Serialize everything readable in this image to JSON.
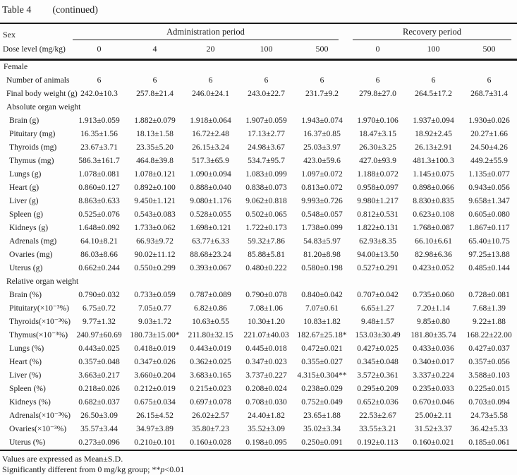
{
  "colors": {
    "ink": "#1a1a1a",
    "background": "#fdfdfd"
  },
  "title": {
    "table_label": "Table 4",
    "continued": "(continued)"
  },
  "header": {
    "sex_label": "Sex",
    "dose_label": "Dose level (mg/kg)",
    "admin_period": "Administration period",
    "recovery_period": "Recovery period",
    "doses": [
      "0",
      "4",
      "20",
      "100",
      "500",
      "0",
      "100",
      "500"
    ]
  },
  "table": {
    "rows": [
      {
        "type": "section",
        "indent": 0,
        "label": "Female"
      },
      {
        "type": "data",
        "indent": 1,
        "label": "Number of animals",
        "values": [
          "6",
          "6",
          "6",
          "6",
          "6",
          "6",
          "6",
          "6"
        ]
      },
      {
        "type": "data",
        "indent": 1,
        "label": "Final body weight (g)",
        "values": [
          "242.0±10.3",
          "257.8±21.4",
          "246.0±24.1",
          "243.0±22.7",
          "231.7±9.2",
          "279.8±27.0",
          "264.5±17.2",
          "268.7±31.4"
        ]
      },
      {
        "type": "section",
        "indent": 1,
        "label": "Absolute organ weight"
      },
      {
        "type": "data",
        "indent": 2,
        "label": "Brain (g)",
        "values": [
          "1.913±0.059",
          "1.882±0.079",
          "1.918±0.064",
          "1.907±0.059",
          "1.943±0.074",
          "1.970±0.106",
          "1.937±0.094",
          "1.930±0.026"
        ]
      },
      {
        "type": "data",
        "indent": 2,
        "label": "Pituitary (mg)",
        "values": [
          "16.35±1.56",
          "18.13±1.58",
          "16.72±2.48",
          "17.13±2.77",
          "16.37±0.85",
          "18.47±3.15",
          "18.92±2.45",
          "20.27±1.66"
        ]
      },
      {
        "type": "data",
        "indent": 2,
        "label": "Thyroids (mg)",
        "values": [
          "23.67±3.71",
          "23.35±5.20",
          "26.15±3.24",
          "24.98±3.67",
          "25.03±3.97",
          "26.30±3.25",
          "26.13±2.91",
          "24.50±4.26"
        ]
      },
      {
        "type": "data",
        "indent": 2,
        "label": "Thymus (mg)",
        "values": [
          "586.3±161.7",
          "464.8±39.8",
          "517.3±65.9",
          "534.7±95.7",
          "423.0±59.6",
          "427.0±93.9",
          "481.3±100.3",
          "449.2±55.9"
        ]
      },
      {
        "type": "data",
        "indent": 2,
        "label": "Lungs (g)",
        "values": [
          "1.078±0.081",
          "1.078±0.121",
          "1.090±0.094",
          "1.083±0.099",
          "1.097±0.072",
          "1.188±0.072",
          "1.145±0.075",
          "1.135±0.077"
        ]
      },
      {
        "type": "data",
        "indent": 2,
        "label": "Heart (g)",
        "values": [
          "0.860±0.127",
          "0.892±0.100",
          "0.888±0.040",
          "0.838±0.073",
          "0.813±0.072",
          "0.958±0.097",
          "0.898±0.066",
          "0.943±0.056"
        ]
      },
      {
        "type": "data",
        "indent": 2,
        "label": "Liver (g)",
        "values": [
          "8.863±0.633",
          "9.450±1.121",
          "9.080±1.176",
          "9.062±0.818",
          "9.993±0.726",
          "9.980±1.217",
          "8.830±0.835",
          "9.658±1.347"
        ]
      },
      {
        "type": "data",
        "indent": 2,
        "label": "Spleen (g)",
        "values": [
          "0.525±0.076",
          "0.543±0.083",
          "0.528±0.055",
          "0.502±0.065",
          "0.548±0.057",
          "0.812±0.531",
          "0.623±0.108",
          "0.605±0.080"
        ]
      },
      {
        "type": "data",
        "indent": 2,
        "label": "Kidneys (g)",
        "values": [
          "1.648±0.092",
          "1.733±0.062",
          "1.698±0.121",
          "1.722±0.173",
          "1.738±0.099",
          "1.822±0.131",
          "1.768±0.087",
          "1.867±0.117"
        ]
      },
      {
        "type": "data",
        "indent": 2,
        "label": "Adrenals (mg)",
        "values": [
          "64.10±8.21",
          "66.93±9.72",
          "63.77±6.33",
          "59.32±7.86",
          "54.83±5.97",
          "62.93±8.35",
          "66.10±6.61",
          "65.40±10.75"
        ]
      },
      {
        "type": "data",
        "indent": 2,
        "label": "Ovaries (mg)",
        "values": [
          "86.03±8.66",
          "90.02±11.12",
          "88.68±23.24",
          "85.88±5.81",
          "81.20±8.98",
          "94.00±13.50",
          "82.98±6.36",
          "97.25±13.88"
        ]
      },
      {
        "type": "data",
        "indent": 2,
        "label": "Uterus (g)",
        "values": [
          "0.662±0.244",
          "0.550±0.299",
          "0.393±0.067",
          "0.480±0.222",
          "0.580±0.198",
          "0.527±0.291",
          "0.423±0.052",
          "0.485±0.144"
        ]
      },
      {
        "type": "section",
        "indent": 1,
        "label": "Relative organ weight"
      },
      {
        "type": "data",
        "indent": 2,
        "label": "Brain (%)",
        "values": [
          "0.790±0.032",
          "0.733±0.059",
          "0.787±0.089",
          "0.790±0.078",
          "0.840±0.042",
          "0.707±0.042",
          "0.735±0.060",
          "0.728±0.081"
        ]
      },
      {
        "type": "data",
        "indent": 2,
        "label": "Pituitary(×10⁻³%)",
        "values": [
          "6.75±0.72",
          "7.05±0.77",
          "6.82±0.86",
          "7.08±1.06",
          "7.07±0.61",
          "6.65±1.27",
          "7.20±1.14",
          "7.68±1.39"
        ]
      },
      {
        "type": "data",
        "indent": 2,
        "label": "Thyroids(×10⁻³%)",
        "values": [
          "9.77±1.32",
          "9.03±1.72",
          "10.63±0.55",
          "10.30±1.20",
          "10.83±1.82",
          "9.48±1.57",
          "9.85±0.80",
          "9.22±1.88"
        ]
      },
      {
        "type": "data",
        "indent": 2,
        "label": "Thymus(×10⁻³%)",
        "values": [
          "240.97±60.69",
          "180.73±15.00*",
          "211.80±32.15",
          "221.07±40.03",
          "182.67±25.18*",
          "153.03±30.49",
          "181.80±35.74",
          "168.22±22.00"
        ]
      },
      {
        "type": "data",
        "indent": 2,
        "label": "Lungs (%)",
        "values": [
          "0.443±0.025",
          "0.418±0.019",
          "0.443±0.019",
          "0.445±0.018",
          "0.472±0.021",
          "0.427±0.025",
          "0.433±0.036",
          "0.427±0.037"
        ]
      },
      {
        "type": "data",
        "indent": 2,
        "label": "Heart (%)",
        "values": [
          "0.357±0.048",
          "0.347±0.026",
          "0.362±0.025",
          "0.347±0.023",
          "0.355±0.027",
          "0.345±0.048",
          "0.340±0.017",
          "0.357±0.056"
        ]
      },
      {
        "type": "data",
        "indent": 2,
        "label": "Liver (%)",
        "values": [
          "3.663±0.217",
          "3.660±0.204",
          "3.683±0.165",
          "3.737±0.227",
          "4.315±0.304**",
          "3.572±0.361",
          "3.337±0.224",
          "3.588±0.103"
        ]
      },
      {
        "type": "data",
        "indent": 2,
        "label": "Spleen (%)",
        "values": [
          "0.218±0.026",
          "0.212±0.019",
          "0.215±0.023",
          "0.208±0.024",
          "0.238±0.029",
          "0.295±0.209",
          "0.235±0.033",
          "0.225±0.015"
        ]
      },
      {
        "type": "data",
        "indent": 2,
        "label": "Kidneys (%)",
        "values": [
          "0.682±0.037",
          "0.675±0.034",
          "0.697±0.078",
          "0.708±0.030",
          "0.752±0.049",
          "0.652±0.036",
          "0.670±0.046",
          "0.703±0.094"
        ]
      },
      {
        "type": "data",
        "indent": 2,
        "label": "Adrenals(×10⁻³%)",
        "values": [
          "26.50±3.09",
          "26.15±4.52",
          "26.02±2.57",
          "24.40±1.82",
          "23.65±1.88",
          "22.53±2.67",
          "25.00±2.11",
          "24.73±5.58"
        ]
      },
      {
        "type": "data",
        "indent": 2,
        "label": "Ovaries(×10⁻³%)",
        "values": [
          "35.57±3.44",
          "34.97±3.89",
          "35.80±7.23",
          "35.52±3.09",
          "35.02±3.34",
          "33.55±3.21",
          "31.52±3.37",
          "36.42±5.33"
        ]
      },
      {
        "type": "data",
        "indent": 2,
        "label": "Uterus (%)",
        "values": [
          "0.273±0.096",
          "0.210±0.101",
          "0.160±0.028",
          "0.198±0.095",
          "0.250±0.091",
          "0.192±0.113",
          "0.160±0.021",
          "0.185±0.061"
        ]
      }
    ]
  },
  "footnotes": {
    "line1": "Values are expressed as Mean±S.D.",
    "line2_prefix": "Significantly different from 0 mg/kg group; **",
    "line2_p": "p",
    "line2_suffix": "<0.01"
  }
}
